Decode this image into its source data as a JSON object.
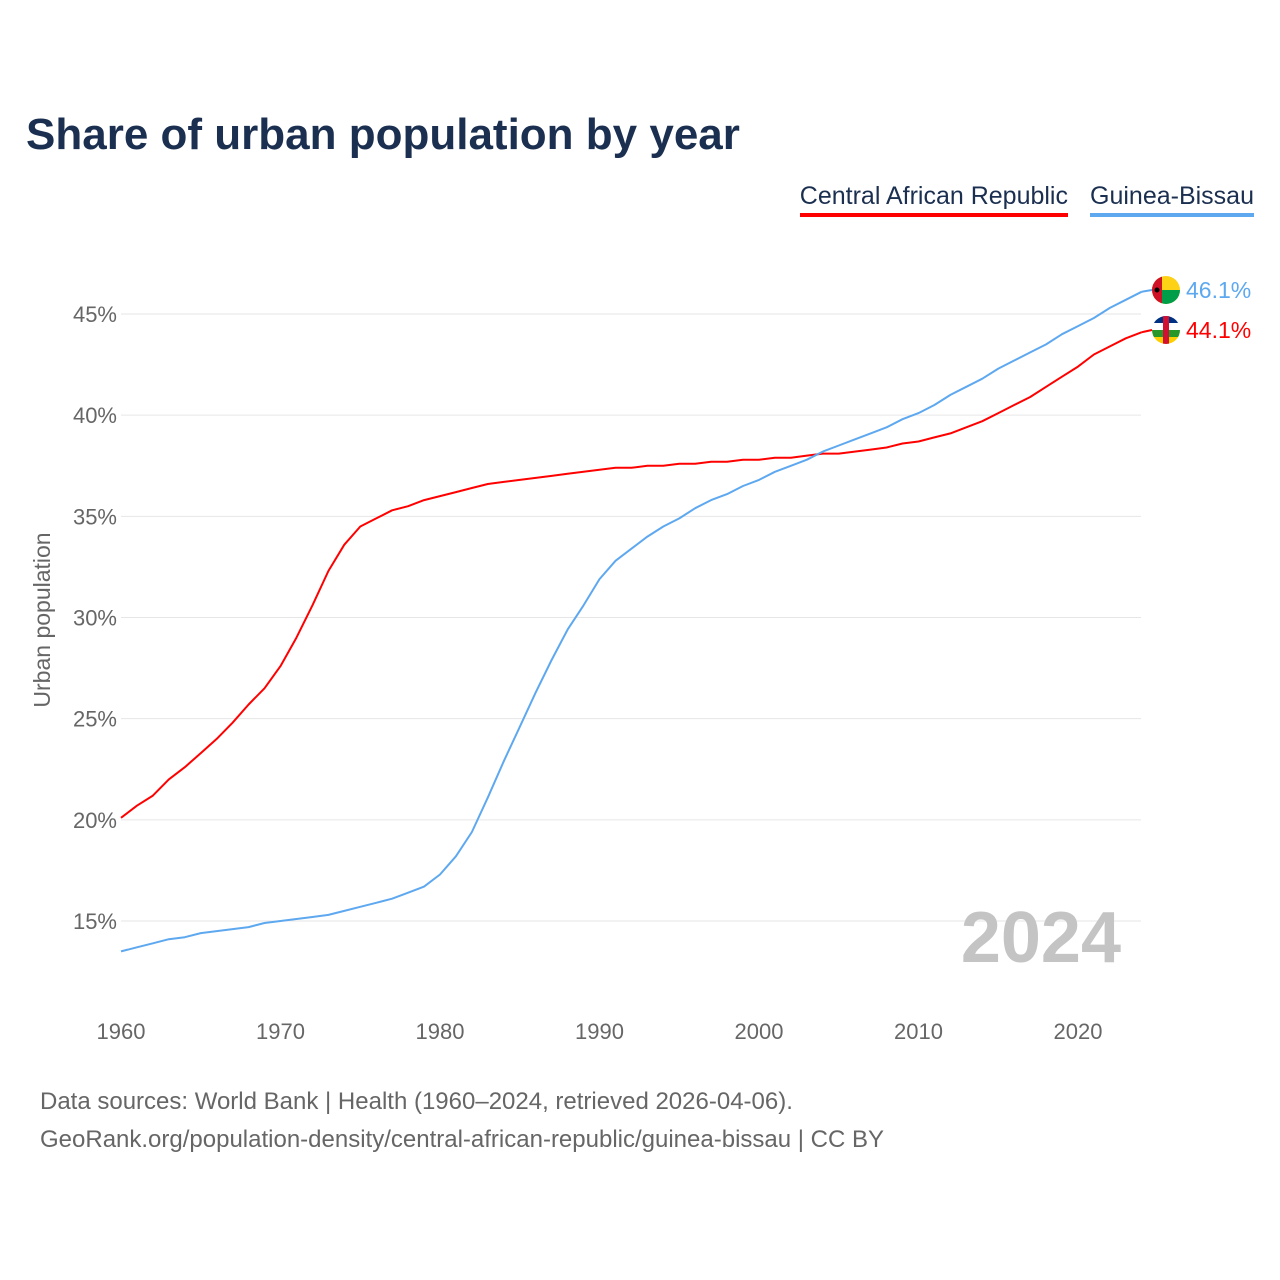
{
  "title": "Share of urban population by year",
  "footer": {
    "line1": "Data sources: World Bank | Health (1960–2024, retrieved 2026-04-06).",
    "line2": "GeoRank.org/population-density/central-african-republic/guinea-bissau | CC BY"
  },
  "chart_data": {
    "type": "line",
    "title": "Share of urban population by year",
    "xlabel": "",
    "ylabel": "Urban population",
    "xlim": [
      1960,
      2024
    ],
    "ylim": [
      12,
      47
    ],
    "grid": true,
    "legend_position": "top-right",
    "year_watermark": "2024",
    "x_ticks": [
      1960,
      1970,
      1980,
      1990,
      2000,
      2010,
      2020
    ],
    "x_tick_labels": [
      "1960",
      "1970",
      "1980",
      "1990",
      "2000",
      "2010",
      "2020"
    ],
    "y_ticks": [
      15,
      20,
      25,
      30,
      35,
      40,
      45
    ],
    "y_tick_labels": [
      "15%",
      "20%",
      "25%",
      "30%",
      "35%",
      "40%",
      "45%"
    ],
    "x": [
      1960,
      1961,
      1962,
      1963,
      1964,
      1965,
      1966,
      1967,
      1968,
      1969,
      1970,
      1971,
      1972,
      1973,
      1974,
      1975,
      1976,
      1977,
      1978,
      1979,
      1980,
      1981,
      1982,
      1983,
      1984,
      1985,
      1986,
      1987,
      1988,
      1989,
      1990,
      1991,
      1992,
      1993,
      1994,
      1995,
      1996,
      1997,
      1998,
      1999,
      2000,
      2001,
      2002,
      2003,
      2004,
      2005,
      2006,
      2007,
      2008,
      2009,
      2010,
      2011,
      2012,
      2013,
      2014,
      2015,
      2016,
      2017,
      2018,
      2019,
      2020,
      2021,
      2022,
      2023,
      2024
    ],
    "series": [
      {
        "name": "Central African Republic",
        "color": "#ff0000",
        "end_label": "44.1%",
        "flag": "central-african-republic-flag",
        "values": [
          20.1,
          20.7,
          21.2,
          22.0,
          22.6,
          23.3,
          24.0,
          24.8,
          25.7,
          26.5,
          27.6,
          29.0,
          30.6,
          32.3,
          33.6,
          34.5,
          34.9,
          35.3,
          35.5,
          35.8,
          36.0,
          36.2,
          36.4,
          36.6,
          36.7,
          36.8,
          36.9,
          37.0,
          37.1,
          37.2,
          37.3,
          37.4,
          37.4,
          37.5,
          37.5,
          37.6,
          37.6,
          37.7,
          37.7,
          37.8,
          37.8,
          37.9,
          37.9,
          38.0,
          38.1,
          38.1,
          38.2,
          38.3,
          38.4,
          38.6,
          38.7,
          38.9,
          39.1,
          39.4,
          39.7,
          40.1,
          40.5,
          40.9,
          41.4,
          41.9,
          42.4,
          43.0,
          43.4,
          43.8,
          44.1
        ]
      },
      {
        "name": "Guinea-Bissau",
        "color": "#5ea8f0",
        "end_label": "46.1%",
        "flag": "guinea-bissau-flag",
        "values": [
          13.5,
          13.7,
          13.9,
          14.1,
          14.2,
          14.4,
          14.5,
          14.6,
          14.7,
          14.9,
          15.0,
          15.1,
          15.2,
          15.3,
          15.5,
          15.7,
          15.9,
          16.1,
          16.4,
          16.7,
          17.3,
          18.2,
          19.4,
          21.1,
          22.9,
          24.6,
          26.3,
          27.9,
          29.4,
          30.6,
          31.9,
          32.8,
          33.4,
          34.0,
          34.5,
          34.9,
          35.4,
          35.8,
          36.1,
          36.5,
          36.8,
          37.2,
          37.5,
          37.8,
          38.2,
          38.5,
          38.8,
          39.1,
          39.4,
          39.8,
          40.1,
          40.5,
          41.0,
          41.4,
          41.8,
          42.3,
          42.7,
          43.1,
          43.5,
          44.0,
          44.4,
          44.8,
          45.3,
          45.7,
          46.1
        ]
      }
    ]
  }
}
